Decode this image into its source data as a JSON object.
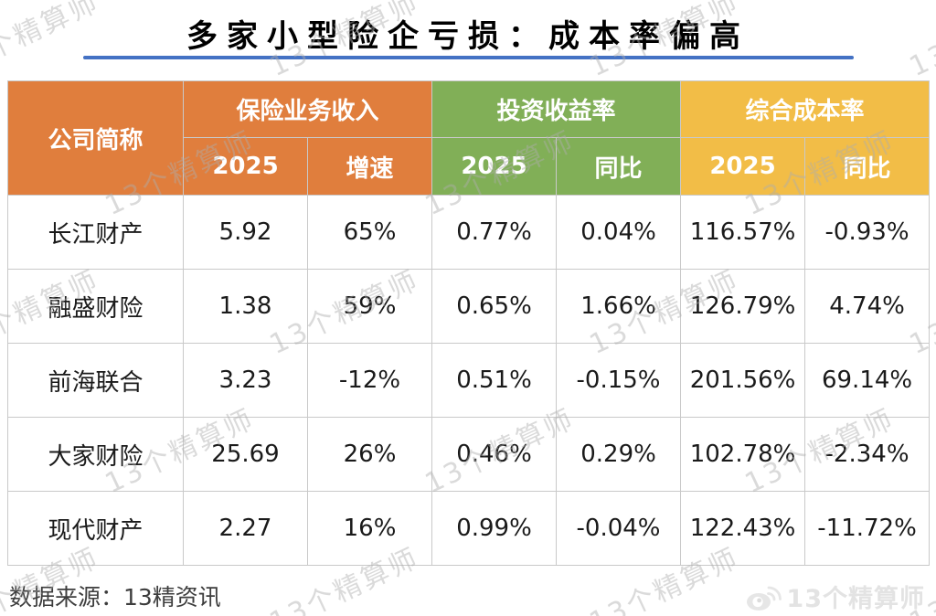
{
  "title": {
    "text": "多家小型险企亏损：成本率偏高"
  },
  "colors": {
    "accent_underline": "#4472C4",
    "header_orange": "#E07E3D",
    "header_green": "#81AF57",
    "header_gold": "#F2BD47",
    "header_text": "#FFFFFF",
    "grid_line": "#C9C9C9",
    "body_text": "#1A1A1A",
    "source_text": "#3D3D3D",
    "brand_gray": "#E3E3E3"
  },
  "chart_data": {
    "type": "table",
    "title": "多家小型险企亏损：成本率偏高",
    "corner_header": "公司简称",
    "column_groups": [
      {
        "label": "保险业务收入",
        "color": "#E07E3D",
        "sub": [
          "2025",
          "增速"
        ]
      },
      {
        "label": "投资收益率",
        "color": "#81AF57",
        "sub": [
          "2025",
          "同比"
        ]
      },
      {
        "label": "综合成本率",
        "color": "#F2BD47",
        "sub": [
          "2025",
          "同比"
        ]
      }
    ],
    "rows": [
      {
        "company": "长江财产",
        "values": [
          "5.92",
          "65%",
          "0.77%",
          "0.04%",
          "116.57%",
          "-0.93%"
        ]
      },
      {
        "company": "融盛财险",
        "values": [
          "1.38",
          "59%",
          "0.65%",
          "1.66%",
          "126.79%",
          "4.74%"
        ]
      },
      {
        "company": "前海联合",
        "values": [
          "3.23",
          "-12%",
          "0.51%",
          "-0.15%",
          "201.56%",
          "69.14%"
        ]
      },
      {
        "company": "大家财险",
        "values": [
          "25.69",
          "26%",
          "0.46%",
          "0.29%",
          "102.78%",
          "-2.34%"
        ]
      },
      {
        "company": "现代财产",
        "values": [
          "2.27",
          "16%",
          "0.99%",
          "-0.04%",
          "122.43%",
          "-11.72%"
        ]
      }
    ]
  },
  "footer": {
    "source": "数据来源：13精资讯",
    "brand": "13个精算师"
  },
  "watermark": {
    "text": "13个精算师"
  },
  "icons": {
    "brand_icon": "weibo-icon"
  }
}
